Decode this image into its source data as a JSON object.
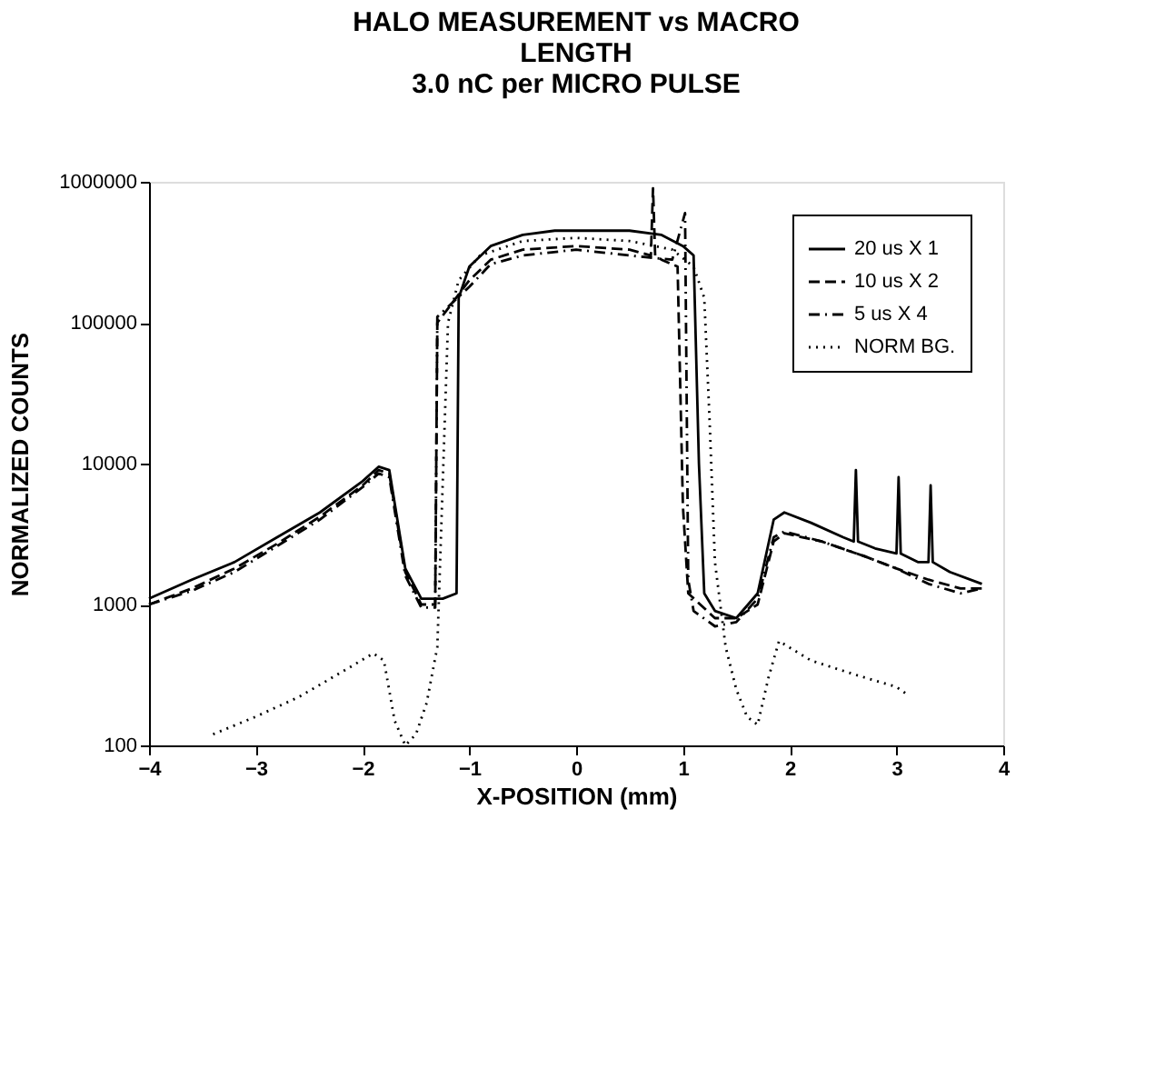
{
  "chart_data": {
    "type": "line",
    "title": [
      "HALO MEASUREMENT vs MACRO",
      "LENGTH",
      "3.0 nC per  MICRO PULSE"
    ],
    "xlabel": "X-POSITION (mm)",
    "ylabel": "NORMALIZED COUNTS",
    "xlim": [
      -4,
      4
    ],
    "xticks": [
      -4,
      -3,
      -2,
      -1,
      0,
      1,
      2,
      3,
      4
    ],
    "ylim": [
      100,
      1000000
    ],
    "yticks": [
      100,
      1000,
      10000,
      100000,
      1000000
    ],
    "log": "y",
    "grid": false,
    "legend": "top right",
    "series": [
      {
        "name": "20 us X 1",
        "color": "#000000",
        "line_style": "solid",
        "x": [
          -4,
          -3.6,
          -3.2,
          -2.8,
          -2.4,
          -2.0,
          -1.85,
          -1.75,
          -1.6,
          -1.45,
          -1.25,
          -1.12,
          -1.1,
          -1.0,
          -0.8,
          -0.5,
          -0.2,
          0.2,
          0.5,
          0.8,
          1.0,
          1.1,
          1.15,
          1.2,
          1.3,
          1.5,
          1.7,
          1.85,
          1.95,
          2.2,
          2.5,
          2.6,
          2.62,
          2.64,
          2.8,
          3.0,
          3.02,
          3.04,
          3.2,
          3.3,
          3.32,
          3.34,
          3.5,
          3.8
        ],
        "values": [
          1100,
          1500,
          2000,
          3000,
          4500,
          7500,
          9500,
          9000,
          1800,
          1100,
          1100,
          1200,
          150000,
          250000,
          350000,
          420000,
          450000,
          450000,
          450000,
          420000,
          350000,
          300000,
          10000,
          1200,
          900,
          800,
          1200,
          4000,
          4500,
          3800,
          3000,
          2800,
          9000,
          2800,
          2500,
          2300,
          8000,
          2300,
          2000,
          2000,
          7000,
          2000,
          1700,
          1400
        ]
      },
      {
        "name": "10 us X 2",
        "color": "#000000",
        "line_style": "dashed",
        "x": [
          -4,
          -3.6,
          -3.2,
          -2.8,
          -2.4,
          -2.0,
          -1.85,
          -1.75,
          -1.6,
          -1.45,
          -1.32,
          -1.3,
          -1.0,
          -0.8,
          -0.5,
          0,
          0.5,
          0.7,
          0.72,
          0.74,
          0.8,
          0.95,
          1.0,
          1.05,
          1.3,
          1.5,
          1.7,
          1.85,
          1.95,
          2.3,
          2.7,
          3.0,
          3.3,
          3.6,
          3.8
        ],
        "values": [
          1000,
          1300,
          1800,
          2700,
          4200,
          7000,
          9000,
          8500,
          1700,
          1000,
          1000,
          100000,
          200000,
          280000,
          330000,
          350000,
          330000,
          300000,
          900000,
          300000,
          280000,
          250000,
          5000,
          1200,
          800,
          800,
          1000,
          2800,
          3200,
          2800,
          2200,
          1800,
          1500,
          1300,
          1300
        ]
      },
      {
        "name": "5 us X 4",
        "color": "#000000",
        "line_style": "dashdot",
        "x": [
          -4,
          -3.6,
          -3.2,
          -2.8,
          -2.4,
          -2.0,
          -1.85,
          -1.75,
          -1.6,
          -1.45,
          -1.32,
          -1.3,
          -1.0,
          -0.8,
          -0.5,
          0,
          0.5,
          0.9,
          1.02,
          1.05,
          1.1,
          1.3,
          1.5,
          1.7,
          1.85,
          1.95,
          2.3,
          2.7,
          3.0,
          3.3,
          3.6,
          3.8
        ],
        "values": [
          1000,
          1250,
          1700,
          2600,
          4000,
          6800,
          8500,
          8000,
          1600,
          950,
          950,
          110000,
          180000,
          260000,
          300000,
          330000,
          300000,
          280000,
          600000,
          1500,
          900,
          700,
          750,
          1100,
          3000,
          3300,
          2800,
          2200,
          1800,
          1400,
          1200,
          1300
        ]
      },
      {
        "name": "NORM BG.",
        "color": "#000000",
        "line_style": "dotted",
        "x": [
          -3.4,
          -3.0,
          -2.6,
          -2.2,
          -1.9,
          -1.8,
          -1.7,
          -1.6,
          -1.5,
          -1.4,
          -1.3,
          -1.2,
          -1.1,
          -0.9,
          -0.5,
          0,
          0.5,
          0.9,
          1.1,
          1.2,
          1.25,
          1.3,
          1.4,
          1.5,
          1.6,
          1.7,
          1.8,
          1.9,
          2.2,
          2.6,
          3.0,
          3.1
        ],
        "values": [
          120,
          160,
          220,
          330,
          450,
          400,
          150,
          100,
          120,
          200,
          500,
          100000,
          200000,
          300000,
          380000,
          400000,
          380000,
          330000,
          250000,
          150000,
          20000,
          2000,
          500,
          250,
          160,
          140,
          300,
          550,
          400,
          320,
          260,
          230
        ]
      }
    ]
  }
}
